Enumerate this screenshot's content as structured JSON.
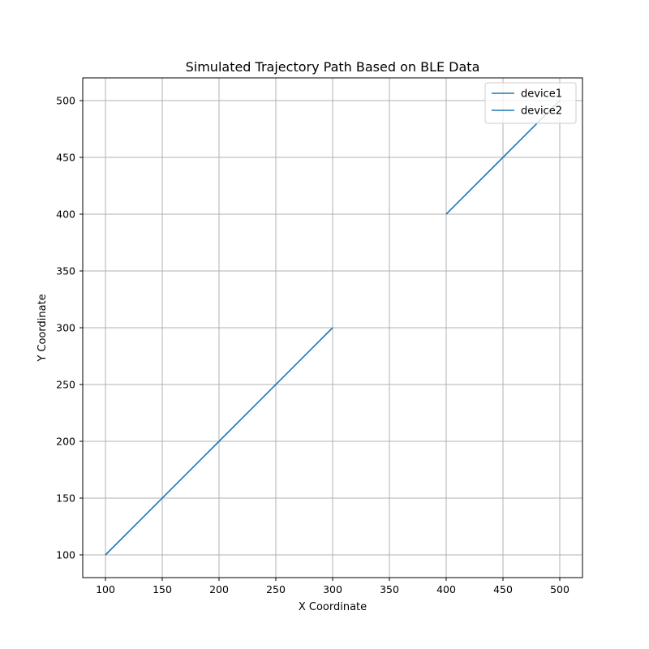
{
  "chart_data": {
    "type": "line",
    "title": "Simulated Trajectory Path Based on BLE Data",
    "xlabel": "X Coordinate",
    "ylabel": "Y Coordinate",
    "xlim": [
      80,
      520
    ],
    "ylim": [
      80,
      520
    ],
    "x_ticks": [
      100,
      150,
      200,
      250,
      300,
      350,
      400,
      450,
      500
    ],
    "y_ticks": [
      100,
      150,
      200,
      250,
      300,
      350,
      400,
      450,
      500
    ],
    "grid": true,
    "legend_position": "top-right",
    "series": [
      {
        "name": "device1",
        "color": "#1f77b4",
        "x": [
          100,
          200,
          300
        ],
        "y": [
          100,
          200,
          300
        ]
      },
      {
        "name": "device2",
        "color": "#1f77b4",
        "x": [
          400,
          450,
          500
        ],
        "y": [
          400,
          450,
          500
        ]
      }
    ]
  }
}
